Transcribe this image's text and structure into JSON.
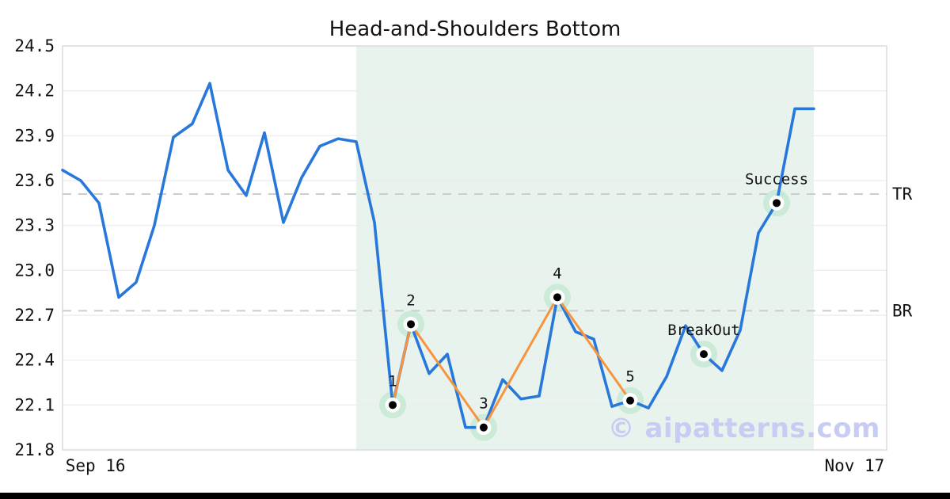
{
  "watermark": "© aipatterns.com",
  "chart_data": {
    "type": "line",
    "title": "Head-and-Shoulders Bottom",
    "grid": "horizontal",
    "legend": "none",
    "y_axis": {
      "min": 21.8,
      "max": 24.5,
      "tick_step": 0.3,
      "tick_labels": [
        "21.8",
        "22.1",
        "22.4",
        "22.7",
        "23.0",
        "23.3",
        "23.6",
        "23.9",
        "24.2",
        "24.5"
      ]
    },
    "x_axis": {
      "ticks": [
        {
          "label": "Sep 16",
          "x_pct": 4.0
        },
        {
          "label": "Nov 17",
          "x_pct": 96.1
        }
      ]
    },
    "price_series": {
      "name": "price",
      "points": [
        [
          0.0,
          23.67
        ],
        [
          2.21,
          23.6
        ],
        [
          4.42,
          23.45
        ],
        [
          6.82,
          22.82
        ],
        [
          8.93,
          22.92
        ],
        [
          11.14,
          23.3
        ],
        [
          13.45,
          23.89
        ],
        [
          15.75,
          23.98
        ],
        [
          17.87,
          24.25
        ],
        [
          20.08,
          23.67
        ],
        [
          22.29,
          23.5
        ],
        [
          24.5,
          23.92
        ],
        [
          26.8,
          23.32
        ],
        [
          29.01,
          23.62
        ],
        [
          31.22,
          23.83
        ],
        [
          33.43,
          23.88
        ],
        [
          35.64,
          23.86
        ],
        [
          37.85,
          23.32
        ],
        [
          40.06,
          22.1
        ],
        [
          42.27,
          22.64
        ],
        [
          44.48,
          22.31
        ],
        [
          46.69,
          22.44
        ],
        [
          48.9,
          21.95
        ],
        [
          51.1,
          21.95
        ],
        [
          53.41,
          22.27
        ],
        [
          55.62,
          22.14
        ],
        [
          57.83,
          22.16
        ],
        [
          60.04,
          22.82
        ],
        [
          62.25,
          22.59
        ],
        [
          64.46,
          22.54
        ],
        [
          66.67,
          22.09
        ],
        [
          68.88,
          22.13
        ],
        [
          71.09,
          22.08
        ],
        [
          73.3,
          22.29
        ],
        [
          75.6,
          22.63
        ],
        [
          77.81,
          22.44
        ],
        [
          80.02,
          22.33
        ],
        [
          82.23,
          22.6
        ],
        [
          84.44,
          23.25
        ],
        [
          86.65,
          23.45
        ],
        [
          88.86,
          24.08
        ],
        [
          91.16,
          24.08
        ]
      ]
    },
    "pattern_series": {
      "name": "head-and-shoulders-pattern",
      "points": [
        {
          "label": "1",
          "x_pct": 40.06,
          "price": 22.1
        },
        {
          "label": "2",
          "x_pct": 42.27,
          "price": 22.64
        },
        {
          "label": "3",
          "x_pct": 51.1,
          "price": 21.95
        },
        {
          "label": "4",
          "x_pct": 60.04,
          "price": 22.82
        },
        {
          "label": "5",
          "x_pct": 68.88,
          "price": 22.13
        }
      ]
    },
    "event_markers": [
      {
        "label": "BreakOut",
        "x_pct": 77.81,
        "price": 22.44
      },
      {
        "label": "Success",
        "x_pct": 86.65,
        "price": 23.45
      }
    ],
    "levels": [
      {
        "label": "TR",
        "price": 23.51
      },
      {
        "label": "BR",
        "price": 22.73
      }
    ],
    "pattern_zone": {
      "x_start_pct": 35.64,
      "x_end_pct": 91.16
    },
    "colors": {
      "price_line": "#2878dc",
      "pattern_line": "#f79440",
      "zone": "#e9f3ee",
      "halo": "#c5e7d4",
      "marker_dot": "#000000",
      "marker_ring": "#ffffff",
      "level_dash": "#cccccc",
      "grid": "#ebebeb",
      "border": "#dcdcdc",
      "watermark": "#c8ccf3"
    }
  }
}
